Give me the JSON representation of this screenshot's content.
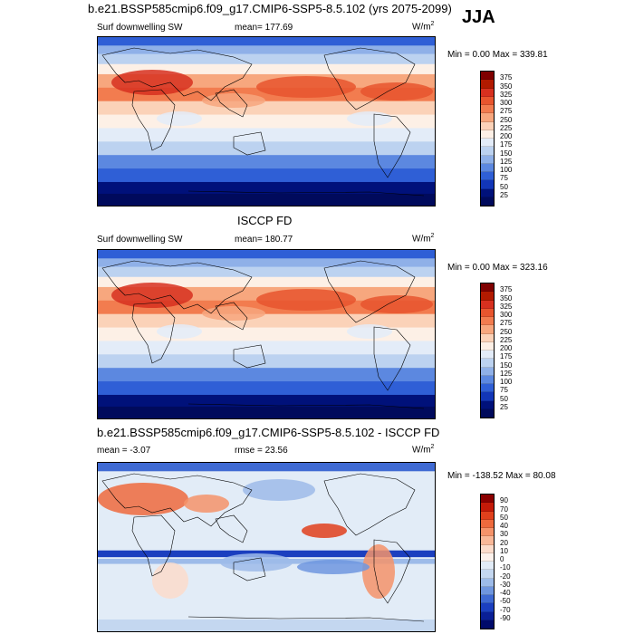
{
  "season": "JJA",
  "panel1": {
    "title": "b.e21.BSSP585cmip6.f09_g17.CMIP6-SSP5-8.5.102 (yrs 2075-2099)",
    "variable": "Surf downwelling SW",
    "mean_label": "mean= 177.69",
    "units": "W/m",
    "units_exp": "2",
    "minmax": "Min =   0.00 Max = 339.81",
    "levels": [
      "375",
      "350",
      "325",
      "300",
      "275",
      "250",
      "225",
      "200",
      "175",
      "150",
      "125",
      "100",
      "75",
      "50",
      "25"
    ]
  },
  "panel2": {
    "title": "ISCCP FD",
    "variable": "Surf downwelling SW",
    "mean_label": "mean= 180.77",
    "units": "W/m",
    "units_exp": "2",
    "minmax": "Min =   0.00 Max = 323.16",
    "levels": [
      "375",
      "350",
      "325",
      "300",
      "275",
      "250",
      "225",
      "200",
      "175",
      "150",
      "125",
      "100",
      "75",
      "50",
      "25"
    ]
  },
  "panel3": {
    "title": "b.e21.BSSP585cmip6.f09_g17.CMIP6-SSP5-8.5.102 - ISCCP FD",
    "mean_label": "mean =  -3.07",
    "rmse_label": "rmse =  23.56",
    "units": "W/m",
    "units_exp": "2",
    "minmax": "Min = -138.52 Max =  80.08",
    "levels": [
      "90",
      "70",
      "50",
      "40",
      "30",
      "20",
      "10",
      "0",
      "-10",
      "-20",
      "-30",
      "-40",
      "-50",
      "-70",
      "-90"
    ]
  },
  "colors": {
    "abs_scale": [
      "#7f0000",
      "#b21a00",
      "#d7301f",
      "#e8552e",
      "#f27c4f",
      "#f7a77e",
      "#fbd2b8",
      "#fdf0e6",
      "#e3ecf8",
      "#bcd2f0",
      "#8fb0e8",
      "#5c88e0",
      "#2f5fd6",
      "#1236b8",
      "#00117a",
      "#000a5c"
    ],
    "diff_scale": [
      "#8b0000",
      "#c41a08",
      "#e0401c",
      "#ee6a3d",
      "#f5936a",
      "#f9b898",
      "#fcdccb",
      "#fdf2ec",
      "#e2ecf7",
      "#c4d7f0",
      "#9dbbe9",
      "#6f96df",
      "#3f6ad3",
      "#1b3fbf",
      "#0a1f96",
      "#000a6b"
    ]
  }
}
